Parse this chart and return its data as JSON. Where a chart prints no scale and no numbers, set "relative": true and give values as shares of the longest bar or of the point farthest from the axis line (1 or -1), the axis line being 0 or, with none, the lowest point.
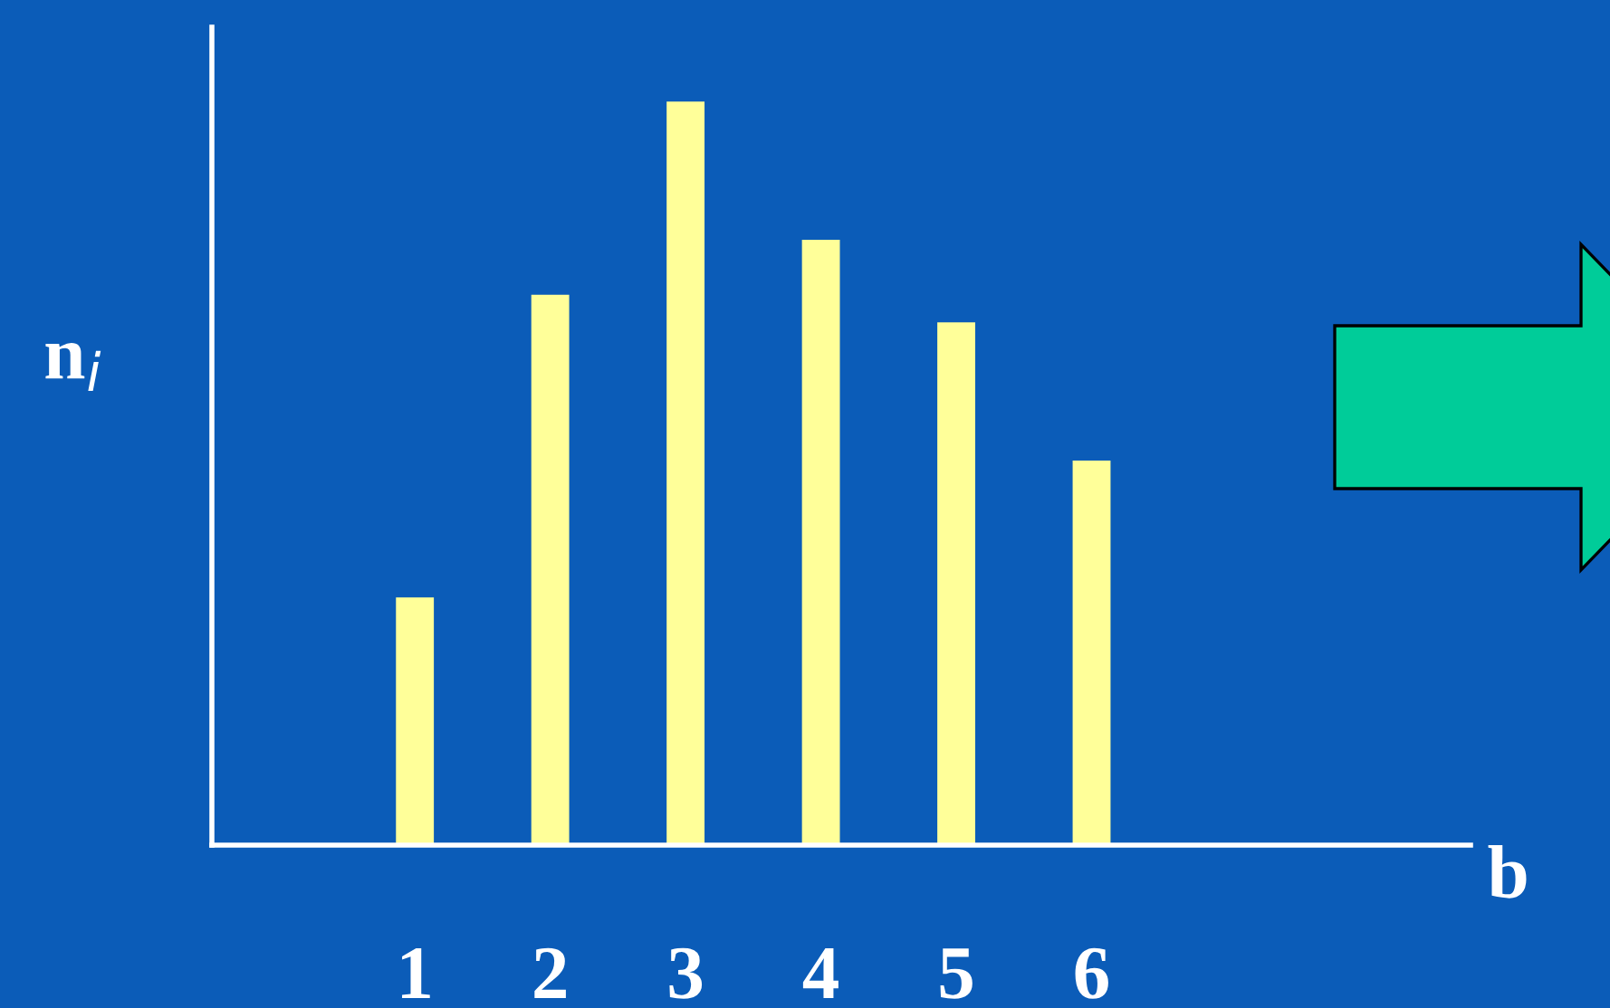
{
  "chart_data": {
    "type": "bar",
    "relative": true,
    "categories": [
      "1",
      "2",
      "3",
      "4",
      "5",
      "6"
    ],
    "series": [
      {
        "color": "#ffff99",
        "values": [
          0.333,
          0.74,
          1,
          0.814,
          0.703,
          0.517
        ]
      }
    ],
    "xlabel": "b",
    "ylabel": "n$_{i}$",
    "grid": false,
    "legend": false
  }
}
